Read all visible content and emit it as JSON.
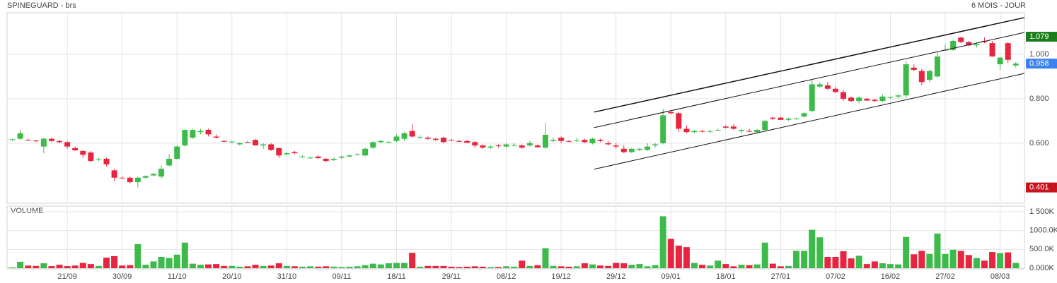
{
  "chart_data": {
    "type": "candlestick",
    "title": "SPINEGUARD - brs",
    "subtitle": "6 MOIS - JOUR",
    "up_color": "#3dbb4a",
    "down_color": "#e8253f",
    "grid": true,
    "categories": [
      null,
      null,
      null,
      null,
      null,
      null,
      null,
      "21/09",
      null,
      null,
      null,
      null,
      null,
      null,
      "30/09",
      null,
      null,
      null,
      null,
      null,
      null,
      "11/10",
      null,
      null,
      null,
      null,
      null,
      null,
      "20/10",
      null,
      null,
      null,
      null,
      null,
      null,
      "31/10",
      null,
      null,
      null,
      null,
      null,
      null,
      "09/11",
      null,
      null,
      null,
      null,
      null,
      null,
      "18/11",
      null,
      null,
      null,
      null,
      null,
      null,
      "29/11",
      null,
      null,
      null,
      null,
      null,
      null,
      "08/12",
      null,
      null,
      null,
      null,
      null,
      null,
      "19/12",
      null,
      null,
      null,
      null,
      null,
      null,
      "29/12",
      null,
      null,
      null,
      null,
      null,
      null,
      "09/01",
      null,
      null,
      null,
      null,
      null,
      null,
      "18/01",
      null,
      null,
      null,
      null,
      null,
      null,
      "27/01",
      null,
      null,
      null,
      null,
      null,
      null,
      "07/02",
      null,
      null,
      null,
      null,
      null,
      null,
      "16/02",
      null,
      null,
      null,
      null,
      null,
      null,
      "27/02",
      null,
      null,
      null,
      null,
      null,
      null,
      "08/03",
      null,
      null
    ],
    "open": [
      0.615,
      0.62,
      0.615,
      0.612,
      0.585,
      0.62,
      0.61,
      0.605,
      0.578,
      0.565,
      0.558,
      0.528,
      0.53,
      0.478,
      0.445,
      0.445,
      0.425,
      0.445,
      0.455,
      0.45,
      0.5,
      0.53,
      0.59,
      0.625,
      0.65,
      0.66,
      0.63,
      0.61,
      0.605,
      0.595,
      0.605,
      0.615,
      0.59,
      0.595,
      0.578,
      0.55,
      0.56,
      0.54,
      0.535,
      0.54,
      0.53,
      0.525,
      0.535,
      0.54,
      0.55,
      0.545,
      0.58,
      0.605,
      0.605,
      0.61,
      0.62,
      0.655,
      0.625,
      0.625,
      0.62,
      0.625,
      0.615,
      0.61,
      0.61,
      0.605,
      0.59,
      0.58,
      0.59,
      0.585,
      0.59,
      0.59,
      0.59,
      0.59,
      0.58,
      0.61,
      0.625,
      0.61,
      0.61,
      0.615,
      0.6,
      0.615,
      0.6,
      0.59,
      0.575,
      0.56,
      0.57,
      0.57,
      0.59,
      0.6,
      0.74,
      0.735,
      0.665,
      0.65,
      0.655,
      0.652,
      0.66,
      0.675,
      0.675,
      0.655,
      0.655,
      0.65,
      0.66,
      0.715,
      0.715,
      0.705,
      0.71,
      0.72,
      0.745,
      0.855,
      0.86,
      0.845,
      0.83,
      0.805,
      0.79,
      0.8,
      0.795,
      0.79,
      0.805,
      0.81,
      0.815,
      0.94,
      0.925,
      0.885,
      0.9,
      1.02,
      1.02,
      1.075,
      1.055,
      1.04,
      1.06,
      1.05,
      0.955,
      1.05,
      0.95
    ],
    "high": [
      0.62,
      0.66,
      0.62,
      0.615,
      0.625,
      0.625,
      0.615,
      0.61,
      0.585,
      0.57,
      0.565,
      0.535,
      0.535,
      0.485,
      0.45,
      0.45,
      0.45,
      0.455,
      0.465,
      0.5,
      0.55,
      0.59,
      0.665,
      0.665,
      0.665,
      0.665,
      0.64,
      0.615,
      0.61,
      0.605,
      0.61,
      0.62,
      0.6,
      0.6,
      0.58,
      0.56,
      0.565,
      0.545,
      0.54,
      0.545,
      0.535,
      0.535,
      0.545,
      0.55,
      0.555,
      0.58,
      0.61,
      0.615,
      0.61,
      0.64,
      0.65,
      0.685,
      0.635,
      0.63,
      0.625,
      0.63,
      0.62,
      0.615,
      0.615,
      0.61,
      0.595,
      0.59,
      0.595,
      0.6,
      0.6,
      0.595,
      0.61,
      0.595,
      0.69,
      0.625,
      0.63,
      0.615,
      0.625,
      0.62,
      0.625,
      0.62,
      0.61,
      0.6,
      0.59,
      0.58,
      0.58,
      0.6,
      0.6,
      0.755,
      0.745,
      0.74,
      0.68,
      0.66,
      0.66,
      0.66,
      0.665,
      0.68,
      0.685,
      0.665,
      0.665,
      0.665,
      0.705,
      0.72,
      0.72,
      0.715,
      0.715,
      0.74,
      0.89,
      0.875,
      0.875,
      0.855,
      0.84,
      0.81,
      0.81,
      0.805,
      0.8,
      0.82,
      0.81,
      0.82,
      0.97,
      0.955,
      0.935,
      0.93,
      1.01,
      1.045,
      1.065,
      1.079,
      1.06,
      1.055,
      1.075,
      1.06,
      0.99,
      1.055,
      0.965
    ],
    "low": [
      0.61,
      0.615,
      0.61,
      0.605,
      0.555,
      0.605,
      0.6,
      0.575,
      0.565,
      0.535,
      0.515,
      0.52,
      0.495,
      0.43,
      0.44,
      0.42,
      0.401,
      0.44,
      0.45,
      0.44,
      0.495,
      0.525,
      0.585,
      0.62,
      0.64,
      0.63,
      0.62,
      0.605,
      0.6,
      0.59,
      0.6,
      0.59,
      0.575,
      0.565,
      0.535,
      0.545,
      0.55,
      0.535,
      0.53,
      0.53,
      0.515,
      0.52,
      0.53,
      0.535,
      0.545,
      0.54,
      0.575,
      0.6,
      0.6,
      0.605,
      0.61,
      0.625,
      0.62,
      0.615,
      0.61,
      0.6,
      0.61,
      0.605,
      0.6,
      0.58,
      0.575,
      0.575,
      0.58,
      0.58,
      0.585,
      0.575,
      0.585,
      0.58,
      0.575,
      0.605,
      0.6,
      0.605,
      0.605,
      0.6,
      0.595,
      0.605,
      0.59,
      0.575,
      0.555,
      0.555,
      0.565,
      0.565,
      0.58,
      0.595,
      0.73,
      0.65,
      0.645,
      0.645,
      0.648,
      0.645,
      0.655,
      0.665,
      0.66,
      0.645,
      0.65,
      0.645,
      0.655,
      0.705,
      0.705,
      0.7,
      0.705,
      0.715,
      0.74,
      0.85,
      0.84,
      0.825,
      0.79,
      0.785,
      0.78,
      0.79,
      0.785,
      0.785,
      0.8,
      0.8,
      0.805,
      0.925,
      0.86,
      0.875,
      0.895,
      1.015,
      1.015,
      1.05,
      1.035,
      1.03,
      1.05,
      0.99,
      0.93,
      0.96,
      0.94
    ],
    "close": [
      0.618,
      0.645,
      0.612,
      0.61,
      0.62,
      0.61,
      0.605,
      0.585,
      0.568,
      0.548,
      0.52,
      0.528,
      0.505,
      0.445,
      0.442,
      0.425,
      0.445,
      0.452,
      0.462,
      0.485,
      0.53,
      0.585,
      0.66,
      0.66,
      0.655,
      0.64,
      0.625,
      0.608,
      0.607,
      0.6,
      0.602,
      0.59,
      0.595,
      0.57,
      0.545,
      0.555,
      0.555,
      0.54,
      0.535,
      0.533,
      0.52,
      0.53,
      0.54,
      0.545,
      0.55,
      0.575,
      0.605,
      0.61,
      0.605,
      0.63,
      0.645,
      0.63,
      0.628,
      0.62,
      0.615,
      0.605,
      0.612,
      0.607,
      0.602,
      0.59,
      0.58,
      0.585,
      0.588,
      0.595,
      0.592,
      0.58,
      0.6,
      0.582,
      0.638,
      0.615,
      0.61,
      0.607,
      0.612,
      0.605,
      0.62,
      0.61,
      0.595,
      0.585,
      0.56,
      0.575,
      0.575,
      0.585,
      0.595,
      0.725,
      0.735,
      0.665,
      0.65,
      0.655,
      0.652,
      0.655,
      0.66,
      0.67,
      0.665,
      0.66,
      0.652,
      0.66,
      0.7,
      0.71,
      0.705,
      0.71,
      0.712,
      0.735,
      0.865,
      0.865,
      0.845,
      0.83,
      0.8,
      0.79,
      0.805,
      0.792,
      0.79,
      0.81,
      0.808,
      0.815,
      0.955,
      0.93,
      0.875,
      0.925,
      0.99,
      1.02,
      1.06,
      1.055,
      1.04,
      1.045,
      1.055,
      0.99,
      0.985,
      0.975,
      0.958
    ],
    "ylim": [
      0.33,
      1.187
    ],
    "yticks": [
      {
        "value": 0.6,
        "label": "0.600"
      },
      {
        "value": 0.8,
        "label": "0.800"
      },
      {
        "value": 1,
        "label": "1.000"
      }
    ],
    "price_markers": [
      {
        "value": 1.079,
        "color": "#1a7f1a"
      },
      {
        "value": 0.958,
        "color": "#3b82f0"
      },
      {
        "value": 0.401,
        "color": "#c8141e"
      }
    ],
    "trendlines": [
      {
        "x": [
          74.2,
          129.1
        ],
        "y": [
          0.74,
          1.165
        ]
      },
      {
        "x": [
          74.2,
          129.1
        ],
        "y": [
          0.67,
          1.098
        ]
      },
      {
        "x": [
          74.2,
          129.1
        ],
        "y": [
          0.483,
          0.914
        ]
      }
    ],
    "volume": {
      "title": "VOLUME",
      "color": "#2eaa2e",
      "values": [
        20,
        170,
        70,
        60,
        130,
        55,
        90,
        55,
        70,
        140,
        110,
        60,
        280,
        320,
        70,
        80,
        640,
        90,
        180,
        300,
        270,
        360,
        680,
        120,
        90,
        100,
        110,
        60,
        60,
        40,
        50,
        90,
        60,
        70,
        130,
        60,
        50,
        40,
        50,
        40,
        50,
        40,
        30,
        40,
        50,
        80,
        120,
        100,
        130,
        140,
        140,
        410,
        40,
        60,
        60,
        60,
        40,
        30,
        40,
        50,
        40,
        30,
        30,
        50,
        40,
        200,
        60,
        80,
        530,
        60,
        50,
        40,
        50,
        130,
        100,
        70,
        60,
        140,
        130,
        90,
        110,
        50,
        80,
        1380,
        780,
        600,
        560,
        140,
        90,
        70,
        200,
        110,
        50,
        90,
        80,
        100,
        680,
        120,
        50,
        60,
        460,
        460,
        1020,
        820,
        300,
        300,
        450,
        260,
        330,
        110,
        180,
        130,
        110,
        100,
        830,
        370,
        460,
        380,
        920,
        380,
        490,
        460,
        350,
        270,
        200,
        430,
        400,
        420,
        140
      ],
      "ylim": [
        0,
        1650
      ],
      "yticks": [
        {
          "value": 0,
          "label": "0.000K"
        },
        {
          "value": 500,
          "label": "500.0K"
        },
        {
          "value": 1000,
          "label": "1000.0K"
        },
        {
          "value": 1500,
          "label": "1 500K"
        }
      ]
    }
  }
}
